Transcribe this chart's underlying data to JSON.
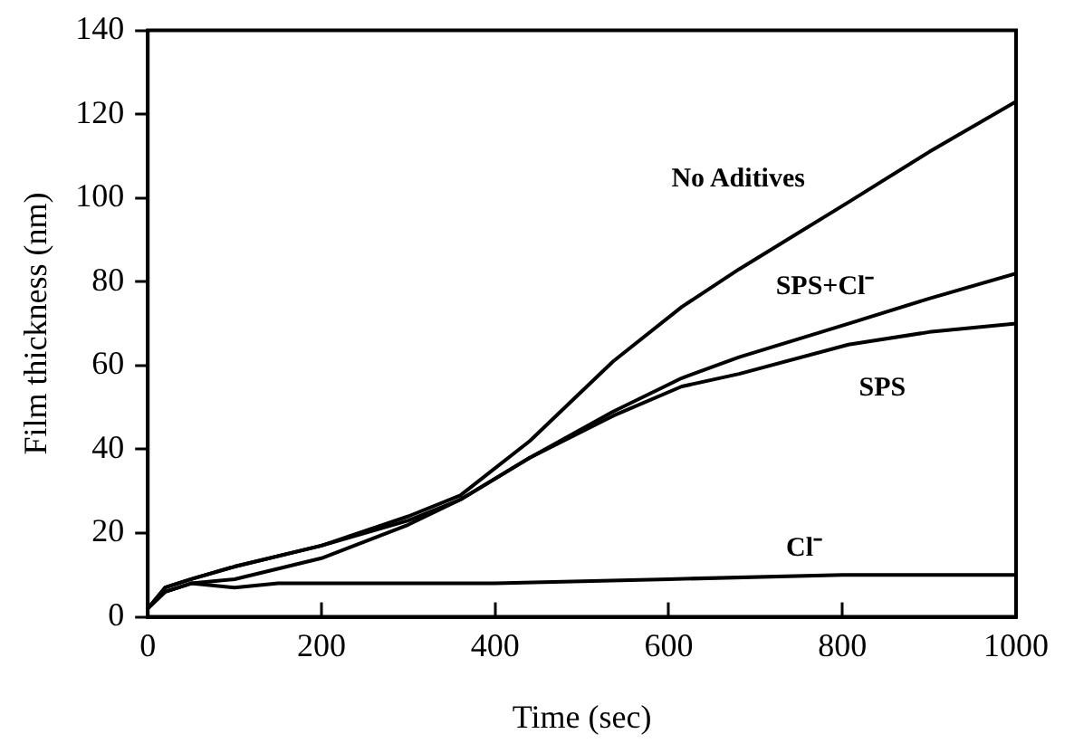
{
  "chart_data": {
    "type": "line",
    "xlabel": "Time (sec)",
    "ylabel": "Film thickness (nm)",
    "xlim": [
      0,
      1000
    ],
    "ylim": [
      0,
      140
    ],
    "xticks": [
      0,
      200,
      400,
      600,
      800,
      1000
    ],
    "yticks": [
      0,
      20,
      40,
      60,
      80,
      100,
      120,
      140
    ],
    "grid": false,
    "legend": false,
    "marker": "none",
    "series": [
      {
        "name": "No Aditives",
        "color": "#000000",
        "x": [
          0,
          20,
          50,
          100,
          200,
          300,
          360,
          440,
          536,
          615,
          681,
          807,
          900,
          1000
        ],
        "values": [
          2,
          7,
          9,
          12,
          17,
          24,
          29,
          42,
          61,
          74,
          83,
          99,
          111,
          123
        ]
      },
      {
        "name": "SPS+Cl⁻",
        "color": "#000000",
        "x": [
          0,
          20,
          50,
          100,
          200,
          300,
          360,
          440,
          536,
          615,
          681,
          807,
          900,
          1000
        ],
        "values": [
          2,
          7,
          9,
          12,
          17,
          23,
          28,
          38,
          49,
          57,
          62,
          70,
          76,
          82
        ]
      },
      {
        "name": "SPS",
        "color": "#000000",
        "x": [
          0,
          20,
          50,
          100,
          200,
          300,
          360,
          440,
          536,
          615,
          681,
          807,
          900,
          1000
        ],
        "values": [
          2,
          6,
          8,
          9,
          14,
          22,
          28,
          38,
          48,
          55,
          58,
          65,
          68,
          70
        ]
      },
      {
        "name": "Cl⁻",
        "color": "#000000",
        "x": [
          0,
          20,
          50,
          100,
          150,
          200,
          400,
          600,
          800,
          1000
        ],
        "values": [
          2,
          6,
          8,
          7,
          8,
          8,
          8,
          9,
          10,
          10
        ]
      }
    ]
  }
}
